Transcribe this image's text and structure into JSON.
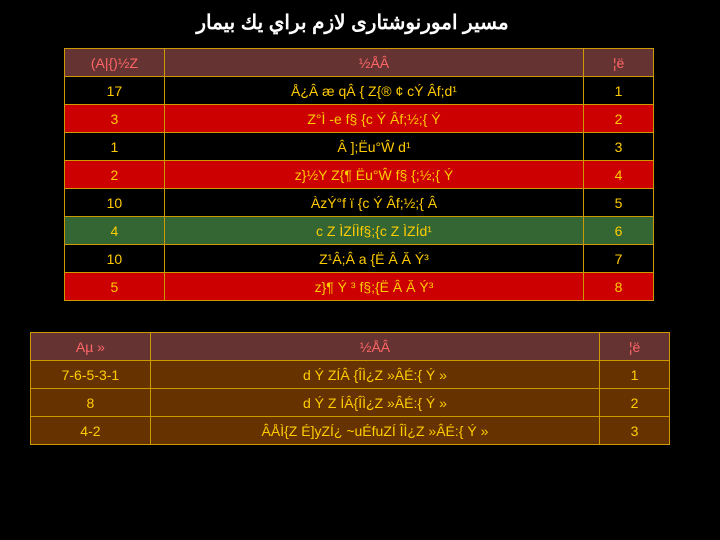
{
  "title": "مسير امورنوشتاری لازم براي يك بيمار",
  "table1": {
    "header": {
      "c1": "(A|{)½Z",
      "c2": "½ÅÂ",
      "c3": "¦ë"
    },
    "rows": [
      {
        "cls": "black-row",
        "c1": "17",
        "c2": "Å¿Â æ qÂ   { Z{® ¢ cÝ Âf;d¹",
        "c3": "1"
      },
      {
        "cls": "red-row",
        "c1": "3",
        "c2": "Z°Ì -e f§ {c Ý Âf;½;{ Ý",
        "c3": "2"
      },
      {
        "cls": "black-row",
        "c1": "1",
        "c2": "Â ];Ëu°Ŵ d¹",
        "c3": "3"
      },
      {
        "cls": "red-row",
        "c1": "2",
        "c2": "z}½Y Z{¶ Ëu°Ŵ  f§ {;½;{ Ý",
        "c3": "4"
      },
      {
        "cls": "black-row",
        "c1": "10",
        "c2": "ÀzÝ°f ï {c Ý Âf;½;{ Â",
        "c3": "5"
      },
      {
        "cls": "green-row",
        "c1": "4",
        "c2": "c Z ÌZÍÌf§;{c Z ÌZÍd¹",
        "c3": "6"
      },
      {
        "cls": "black-row",
        "c1": "10",
        "c2": "Z¹Â;Â a {Ë Â Ă Ý³",
        "c3": "7"
      },
      {
        "cls": "red-row",
        "c1": "5",
        "c2": "z}¶   Ý ³ f§;{Ë Â Ă Ý³",
        "c3": "8"
      }
    ]
  },
  "table2": {
    "header": {
      "c1": "Aµ »",
      "c2": "½ÅÂ",
      "c3": "¦ë"
    },
    "rows": [
      {
        "cls": "brown-row",
        "c1": "7-6-5-3-1",
        "c2": "d  Ý ZÍÂ {ÎÌ¿Z »ÂÉ:{ Ý »",
        "c3": "1"
      },
      {
        "cls": "brown-row",
        "c1": "8",
        "c2": "d  Ý Z ÍÂ{ÎÌ¿Z »ÂÉ:{ Ý »",
        "c3": "2"
      },
      {
        "cls": "brown-row",
        "c1": "4-2",
        "c2": "ÂÅÌ{Z É]yZÍ¿ ~uÉfuZÍ  ÎÌ¿Z »ÂÉ:{ Ý »",
        "c3": "3"
      }
    ]
  }
}
